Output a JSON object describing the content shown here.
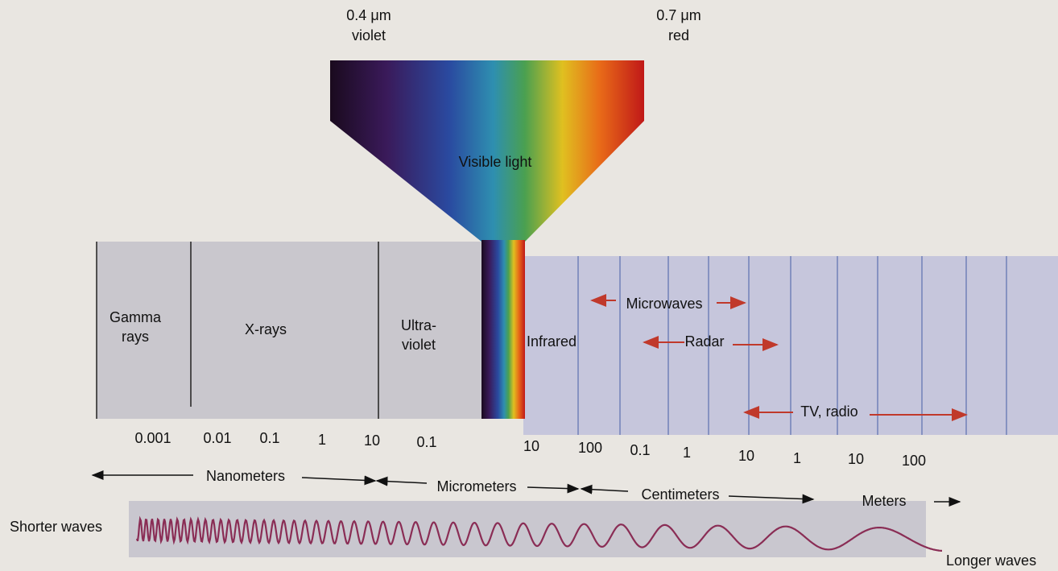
{
  "visible": {
    "violet_wavelength": "0.4 μm",
    "violet": "violet",
    "red_wavelength": "0.7 μm",
    "red": "red",
    "label": "Visible light"
  },
  "bands": [
    {
      "lines": [
        "Gamma",
        "rays"
      ]
    },
    {
      "lines": [
        "X-rays"
      ]
    },
    {
      "lines": [
        "Ultra-",
        "violet"
      ]
    },
    {
      "lines": [
        "Infrared"
      ]
    },
    {
      "lines": [
        "Microwaves"
      ]
    },
    {
      "lines": [
        "Radar"
      ]
    },
    {
      "lines": [
        "TV, radio"
      ]
    }
  ],
  "scale": [
    "0.001",
    "0.01",
    "0.1",
    "1",
    "10",
    "0.1",
    "10",
    "100",
    "0.1",
    "1",
    "10",
    "1",
    "10",
    "100"
  ],
  "units": [
    "Nanometers",
    "Micrometers",
    "Centimeters",
    "Meters"
  ],
  "waves": {
    "short": "Shorter waves",
    "long": "Longer waves"
  }
}
